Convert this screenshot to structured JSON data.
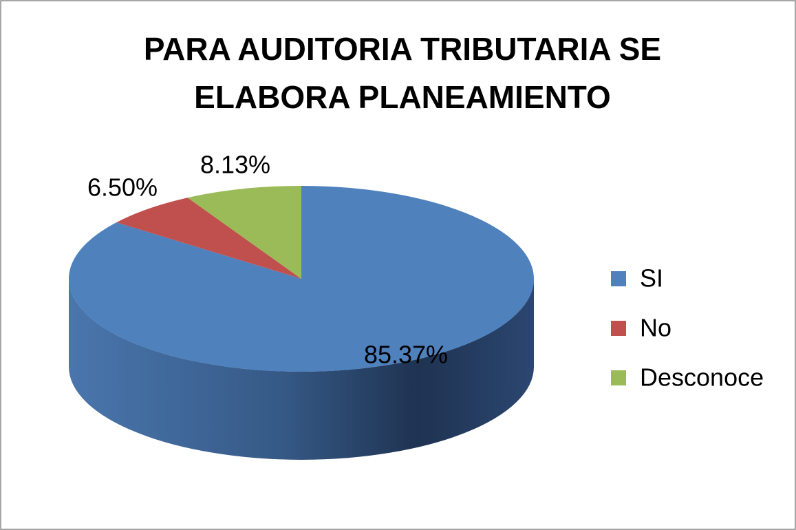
{
  "chart_data": {
    "type": "pie",
    "title": "PARA AUDITORIA TRIBUTARIA SE ELABORA PLANEAMIENTO",
    "categories": [
      "SI",
      "No",
      "Desconoce"
    ],
    "values": [
      85.37,
      6.5,
      8.13
    ],
    "value_labels": [
      "85.37%",
      "6.50%",
      "8.13%"
    ],
    "colors": [
      "#4f81bd",
      "#c0504d",
      "#9bbb59"
    ],
    "legend": "right",
    "style": "3d"
  }
}
